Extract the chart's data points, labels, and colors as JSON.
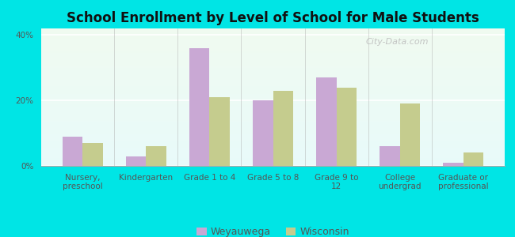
{
  "title": "School Enrollment by Level of School for Male Students",
  "categories": [
    "Nursery,\npreschool",
    "Kindergarten",
    "Grade 1 to 4",
    "Grade 5 to 8",
    "Grade 9 to\n12",
    "College\nundergrad",
    "Graduate or\nprofessional"
  ],
  "weyauwega": [
    9,
    3,
    36,
    20,
    27,
    6,
    1
  ],
  "wisconsin": [
    7,
    6,
    21,
    23,
    24,
    19,
    4
  ],
  "weyauwega_color": "#c9a8d4",
  "wisconsin_color": "#c5cc8e",
  "outer_bg": "#00e5e5",
  "ylim": [
    0,
    42
  ],
  "yticks": [
    0,
    20,
    40
  ],
  "ytick_labels": [
    "0%",
    "20%",
    "40%"
  ],
  "bar_width": 0.32,
  "title_fontsize": 12,
  "tick_fontsize": 7.5,
  "legend_fontsize": 9,
  "watermark": "City-Data.com"
}
